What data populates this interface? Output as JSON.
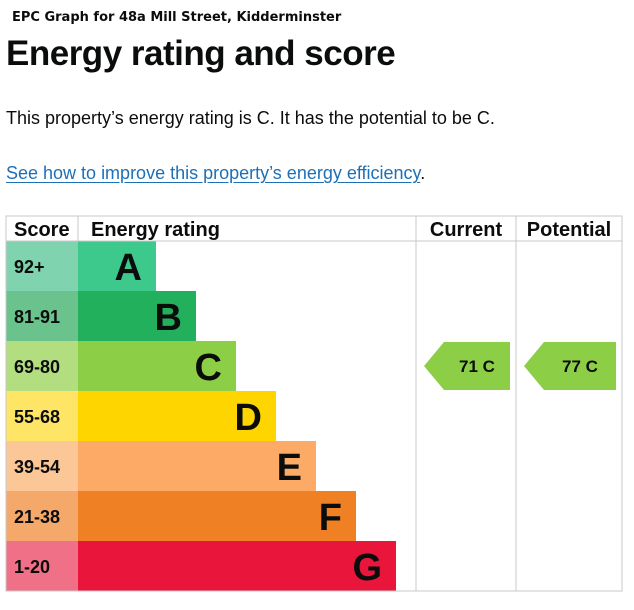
{
  "caption": "EPC Graph for 48a Mill Street, Kidderminster",
  "heading": "Energy rating and score",
  "summary": "This property’s energy rating is C. It has the potential to be C.",
  "improve_link": "See how to improve this property’s energy efficiency",
  "improve_suffix": ".",
  "chart_data": {
    "type": "bar",
    "headers": {
      "score": "Score",
      "rating": "Energy rating",
      "current": "Current",
      "potential": "Potential"
    },
    "bands": [
      {
        "score": "92+",
        "letter": "A",
        "color": "#3dc88c",
        "scoreColor": "#7fd3ae"
      },
      {
        "score": "81-91",
        "letter": "B",
        "color": "#22b05c",
        "scoreColor": "#6ac28c"
      },
      {
        "score": "69-80",
        "letter": "C",
        "color": "#8cce46",
        "scoreColor": "#b3de80"
      },
      {
        "score": "55-68",
        "letter": "D",
        "color": "#ffd500",
        "scoreColor": "#ffe566"
      },
      {
        "score": "39-54",
        "letter": "E",
        "color": "#fcaa65",
        "scoreColor": "#fcc797"
      },
      {
        "score": "21-38",
        "letter": "F",
        "color": "#ef8023",
        "scoreColor": "#f4a86a"
      },
      {
        "score": "1-20",
        "letter": "G",
        "color": "#e9153b",
        "scoreColor": "#f07088"
      }
    ],
    "current": {
      "value": 71,
      "rating": "C",
      "label": "71  C",
      "color": "#8cce46"
    },
    "potential": {
      "value": 77,
      "rating": "C",
      "label": "77  C",
      "color": "#8cce46"
    }
  }
}
